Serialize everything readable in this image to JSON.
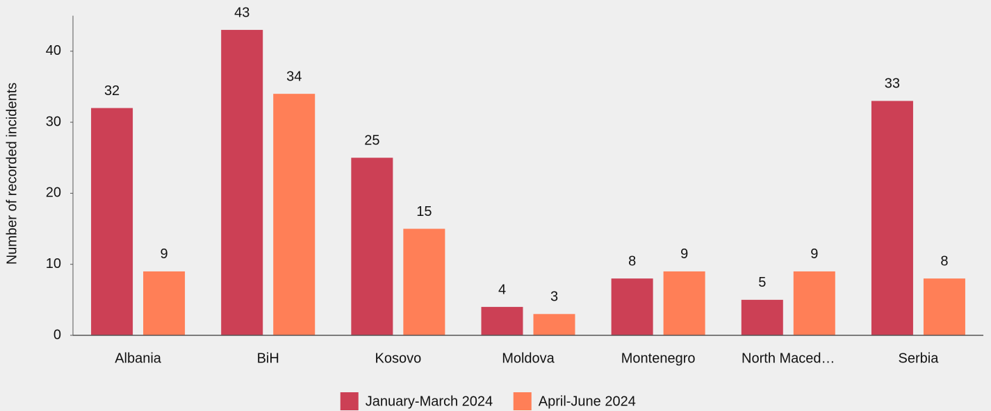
{
  "chart_data": {
    "type": "bar",
    "y_label": "Number of recorded incidents",
    "categories": [
      "Albania",
      "BiH",
      "Kosovo",
      "Moldova",
      "Montenegro",
      "North Maced…",
      "Serbia"
    ],
    "series": [
      {
        "name": "January-March 2024",
        "color": "#cc4055",
        "values": [
          32,
          43,
          25,
          4,
          8,
          5,
          33
        ]
      },
      {
        "name": "April-June 2024",
        "color": "#ff7f57",
        "values": [
          9,
          34,
          15,
          3,
          9,
          9,
          8
        ]
      }
    ],
    "ylim": [
      0,
      45
    ],
    "yticks": [
      0,
      10,
      20,
      30,
      40
    ],
    "legend": "bottom"
  }
}
